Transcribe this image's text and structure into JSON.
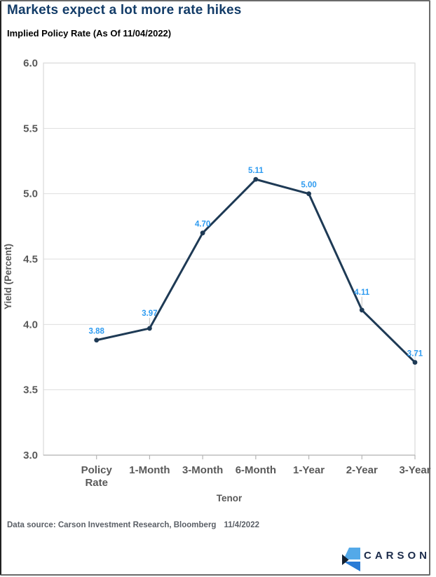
{
  "header": {
    "title": "Markets expect a lot more rate hikes",
    "subtitle": "Implied Policy Rate (As Of 11/04/2022)",
    "title_color": "#133c68"
  },
  "chart_data": {
    "type": "line",
    "title": "Implied Policy Rate (As Of 11/04/2022)",
    "categories": [
      "Policy Rate",
      "1-Month",
      "3-Month",
      "6-Month",
      "1-Year",
      "2-Year",
      "3-Year"
    ],
    "values": [
      3.88,
      3.97,
      4.7,
      5.11,
      5.0,
      4.11,
      3.71
    ],
    "point_labels": [
      "3.88",
      "3.97",
      "4.70",
      "5.11",
      "5.00",
      "4.11",
      "3.71"
    ],
    "xlabel": "Tenor",
    "ylabel": "Yield (Percent)",
    "ylim": [
      3.0,
      6.0
    ],
    "ytick_step": 0.5,
    "ytick_labels": [
      "3.0",
      "3.5",
      "4.0",
      "4.5",
      "5.0",
      "5.5",
      "6.0"
    ],
    "grid": true,
    "legend_position": "none",
    "label_offsets": [
      -9,
      -18,
      -9,
      -9,
      -9,
      -22,
      -9
    ],
    "label_leader_lines": [
      false,
      true,
      false,
      false,
      false,
      true,
      false
    ],
    "colors": {
      "line": "#1e3a55",
      "marker": "#1e3a55",
      "point_label": "#2e9bf0",
      "gridline": "#dedede",
      "frame": "#d9d9d9",
      "axis_line": "#b5b5b5",
      "tick_text": "#595959",
      "leader_line": "#cccccc"
    }
  },
  "footer": {
    "source_text": "Data source: Carson Investment Research, Bloomberg",
    "date": "11/4/2022",
    "text_color": "#5a5f66"
  },
  "logo": {
    "text": "CARSON",
    "text_color": "#1b2b4a",
    "mark_colors": [
      "#54a9e8",
      "#2a7cd6",
      "#13202f"
    ]
  }
}
